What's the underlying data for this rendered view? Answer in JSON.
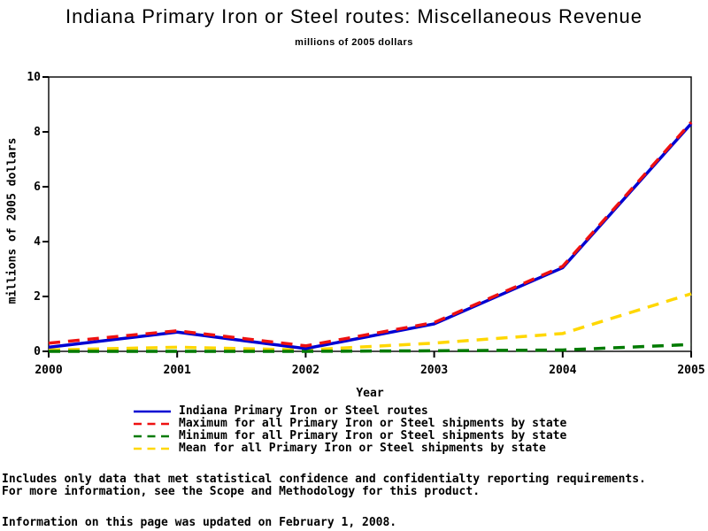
{
  "page": {
    "title": "Indiana Primary Iron or Steel routes: Miscellaneous Revenue",
    "subtitle": "millions of 2005 dollars",
    "footnotes": {
      "line1": "Includes only data that met statistical confidence and confidentialty reporting requirements.",
      "line2": "For more information, see the Scope and Methodology for this product.",
      "updated": "Information on this page was updated on February 1, 2008."
    }
  },
  "chart_data": {
    "type": "line",
    "title": "Indiana Primary Iron or Steel routes: Miscellaneous Revenue",
    "subtitle": "millions of 2005 dollars",
    "xlabel": "Year",
    "ylabel": "millions of 2005 dollars",
    "x": [
      2000,
      2001,
      2002,
      2003,
      2004,
      2005
    ],
    "ylim": [
      0,
      10
    ],
    "y_ticks": [
      0,
      2,
      4,
      6,
      8,
      10
    ],
    "grid": false,
    "legend_position": "bottom",
    "axis_color": "#000000",
    "series": [
      {
        "id": "indiana",
        "name": "Indiana Primary Iron or Steel routes",
        "color": "#0000d2",
        "style": "solid",
        "values": [
          0.15,
          0.7,
          0.1,
          1.0,
          3.05,
          8.3
        ]
      },
      {
        "id": "maximum",
        "name": "Maximum for all Primary Iron or Steel shipments by state",
        "color": "#ee1111",
        "style": "dashed",
        "values": [
          0.3,
          0.75,
          0.2,
          1.05,
          3.1,
          8.35
        ]
      },
      {
        "id": "minimum",
        "name": "Minimum for all Primary Iron or Steel shipments by state",
        "color": "#007a00",
        "style": "dashed",
        "values": [
          0.0,
          0.0,
          0.0,
          0.02,
          0.05,
          0.25
        ]
      },
      {
        "id": "mean",
        "name": "Mean for all Primary Iron or Steel shipments by state",
        "color": "#ffd700",
        "style": "dashed",
        "values": [
          0.05,
          0.15,
          0.05,
          0.3,
          0.65,
          2.1
        ]
      }
    ]
  }
}
